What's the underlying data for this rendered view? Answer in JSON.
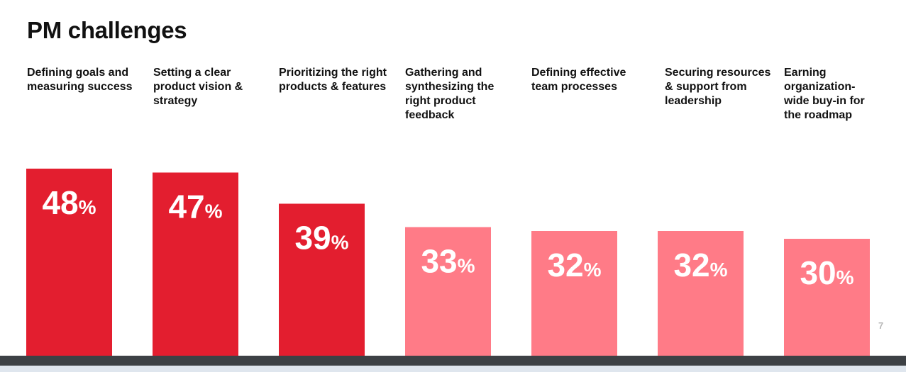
{
  "chart_data": {
    "type": "bar",
    "title": "PM challenges",
    "categories": [
      "Defining goals and measuring success",
      "Setting a clear product vision & strategy",
      "Prioritizing the right products & features",
      "Gathering and synthesizing the right product feedback",
      "Defining effective team processes",
      "Securing resources & support from leadership",
      "Earning organization-wide buy-in for the roadmap"
    ],
    "values": [
      48,
      47,
      39,
      33,
      32,
      32,
      30
    ],
    "value_labels": [
      "48",
      "47",
      "39",
      "33",
      "32",
      "32",
      "30"
    ],
    "value_suffix": "%",
    "highlight_count": 3,
    "colors": {
      "highlight": "#e31e2f",
      "muted": "#ff7b87"
    },
    "ylim": [
      0,
      100
    ],
    "grid": false
  },
  "page_number": "7"
}
